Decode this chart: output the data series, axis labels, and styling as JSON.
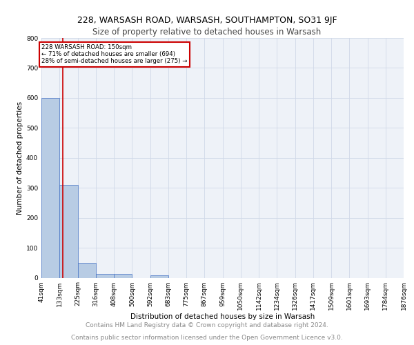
{
  "title1": "228, WARSASH ROAD, WARSASH, SOUTHAMPTON, SO31 9JF",
  "title2": "Size of property relative to detached houses in Warsash",
  "xlabel": "Distribution of detached houses by size in Warsash",
  "ylabel": "Number of detached properties",
  "bin_edges": [
    41,
    133,
    225,
    316,
    408,
    500,
    592,
    683,
    775,
    867,
    959,
    1050,
    1142,
    1234,
    1326,
    1417,
    1509,
    1601,
    1693,
    1784,
    1876
  ],
  "bin_labels": [
    "41sqm",
    "133sqm",
    "225sqm",
    "316sqm",
    "408sqm",
    "500sqm",
    "592sqm",
    "683sqm",
    "775sqm",
    "867sqm",
    "959sqm",
    "1050sqm",
    "1142sqm",
    "1234sqm",
    "1326sqm",
    "1417sqm",
    "1509sqm",
    "1601sqm",
    "1693sqm",
    "1784sqm",
    "1876sqm"
  ],
  "bar_heights": [
    600,
    310,
    50,
    13,
    13,
    0,
    8,
    0,
    0,
    0,
    0,
    0,
    0,
    0,
    0,
    0,
    0,
    0,
    0,
    0
  ],
  "bar_color": "#b8cce4",
  "bar_edge_color": "#4472c4",
  "property_size": 150,
  "red_line_color": "#cc0000",
  "annotation_text": "228 WARSASH ROAD: 150sqm\n← 71% of detached houses are smaller (694)\n28% of semi-detached houses are larger (275) →",
  "annotation_box_color": "#cc0000",
  "annotation_text_color": "#000000",
  "ylim": [
    0,
    800
  ],
  "yticks": [
    0,
    100,
    200,
    300,
    400,
    500,
    600,
    700,
    800
  ],
  "grid_color": "#d0d8e8",
  "background_color": "#eef2f8",
  "footer1": "Contains HM Land Registry data © Crown copyright and database right 2024.",
  "footer2": "Contains public sector information licensed under the Open Government Licence v3.0.",
  "title1_fontsize": 9,
  "title2_fontsize": 8.5,
  "axis_label_fontsize": 7.5,
  "tick_fontsize": 6.5,
  "footer_fontsize": 6.5
}
